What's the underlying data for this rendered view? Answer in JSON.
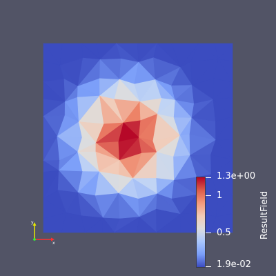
{
  "viewer": {
    "background_color": "#525466",
    "field_name": "ResultField"
  },
  "scalar_bar": {
    "title": "ResultField",
    "max_label": "1.3e+00",
    "min_label": "1.9e-02",
    "mid_labels": [
      "1",
      "0.5"
    ],
    "colors": [
      "#b40426",
      "#dc5d4a",
      "#f49a7b",
      "#f2cbb7",
      "#dddddd",
      "#aac7fd",
      "#7b9ff9",
      "#3b4cc0"
    ]
  },
  "field": {
    "max_value": 1.3,
    "min_value": 0.019,
    "peak_location": "center-left of domain"
  },
  "orientation_axes": {
    "x_label": "x",
    "y_label": "y",
    "x_color": "#ff3030",
    "y_color": "#e8e800",
    "z_color": "#30ff30"
  }
}
